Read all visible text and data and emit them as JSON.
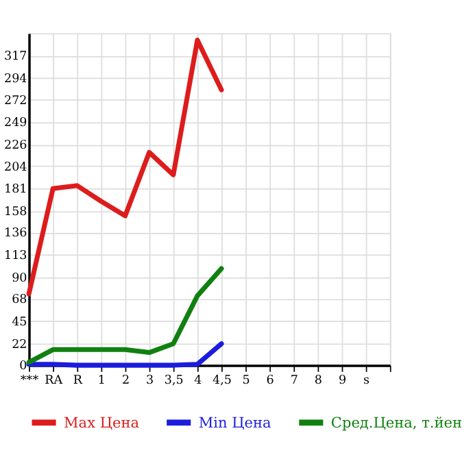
{
  "chart_data": {
    "type": "line",
    "categories": [
      "***",
      "RA",
      "R",
      "1",
      "2",
      "3",
      "3,5",
      "4",
      "4,5",
      "5",
      "6",
      "7",
      "8",
      "9",
      "s"
    ],
    "series": [
      {
        "name": "Max Цена",
        "color": "#dd1c1c",
        "values": [
          73,
          181,
          184,
          168,
          153,
          218,
          195,
          333,
          282,
          null,
          null,
          null,
          null,
          null,
          null
        ]
      },
      {
        "name": "Min Цена",
        "color": "#1c1cdd",
        "values": [
          1,
          1,
          0,
          0,
          0,
          0,
          0,
          1,
          22,
          null,
          null,
          null,
          null,
          null,
          null
        ]
      },
      {
        "name": "Сред.Цена, т.йен",
        "color": "#108010",
        "values": [
          3,
          16,
          16,
          16,
          16,
          13,
          22,
          71,
          99,
          null,
          null,
          null,
          null,
          null,
          null
        ]
      }
    ],
    "ylim": [
      0,
      340
    ],
    "yticks": [
      0,
      22,
      45,
      68,
      90,
      113,
      136,
      158,
      181,
      204,
      226,
      249,
      272,
      294,
      317
    ],
    "grid": true,
    "legend": "bottom",
    "marker": "none",
    "line_style": "solid"
  }
}
